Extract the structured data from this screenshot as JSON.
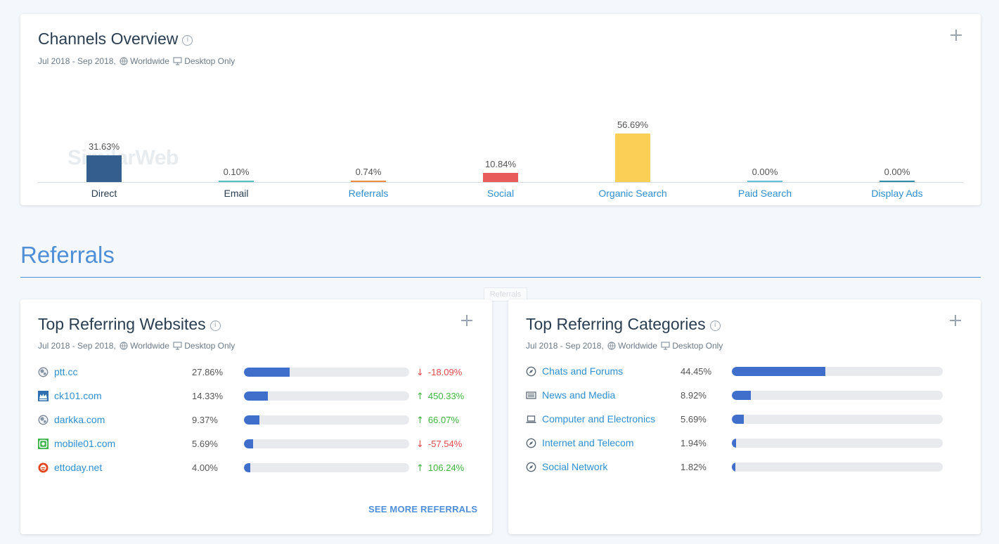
{
  "channels_overview": {
    "title": "Channels Overview",
    "date_range": "Jul 2018 - Sep 2018,",
    "geo": "Worldwide",
    "device": "Desktop Only",
    "watermark": "SimilarWeb"
  },
  "chart_data": {
    "type": "bar",
    "categories": [
      "Direct",
      "Email",
      "Referrals",
      "Social",
      "Organic Search",
      "Paid Search",
      "Display Ads"
    ],
    "values": [
      31.63,
      0.1,
      0.74,
      10.84,
      56.69,
      0.0,
      0.0
    ],
    "value_labels": [
      "31.63%",
      "0.10%",
      "0.74%",
      "10.84%",
      "56.69%",
      "0.00%",
      "0.00%"
    ],
    "colors": [
      "#335e8d",
      "#4fc4bc",
      "#f08a3c",
      "#e85c5c",
      "#fbcf55",
      "#5bc1dd",
      "#2b8ea6"
    ],
    "label_links": [
      false,
      false,
      true,
      true,
      true,
      true,
      true
    ],
    "ylim": [
      0,
      56.69
    ]
  },
  "referrals_section": {
    "title": "Referrals",
    "tooltip": "Referrals"
  },
  "top_referring_websites": {
    "title": "Top Referring Websites",
    "date_range": "Jul 2018 - Sep 2018,",
    "geo": "Worldwide",
    "device": "Desktop Only",
    "see_more": "SEE MORE REFERRALS",
    "rows": [
      {
        "site": "ptt.cc",
        "pct": "27.86%",
        "share": 0.2786,
        "change": "-18.09%",
        "direction": "down",
        "icon": "globe-icon"
      },
      {
        "site": "ck101.com",
        "pct": "14.33%",
        "share": 0.1433,
        "change": "450.33%",
        "direction": "up",
        "icon": "ck101-favicon"
      },
      {
        "site": "darkka.com",
        "pct": "9.37%",
        "share": 0.0937,
        "change": "66.07%",
        "direction": "up",
        "icon": "globe-icon"
      },
      {
        "site": "mobile01.com",
        "pct": "5.69%",
        "share": 0.0569,
        "change": "-57.54%",
        "direction": "down",
        "icon": "mobile01-favicon"
      },
      {
        "site": "ettoday.net",
        "pct": "4.00%",
        "share": 0.04,
        "change": "106.24%",
        "direction": "up",
        "icon": "ettoday-favicon"
      }
    ]
  },
  "top_referring_categories": {
    "title": "Top Referring Categories",
    "date_range": "Jul 2018 - Sep 2018,",
    "geo": "Worldwide",
    "device": "Desktop Only",
    "rows": [
      {
        "category": "Chats and Forums",
        "pct": "44.45%",
        "share": 0.4445,
        "icon": "compass-icon"
      },
      {
        "category": "News and Media",
        "pct": "8.92%",
        "share": 0.0892,
        "icon": "newspaper-icon"
      },
      {
        "category": "Computer and Electronics",
        "pct": "5.69%",
        "share": 0.0569,
        "icon": "laptop-icon"
      },
      {
        "category": "Internet and Telecom",
        "pct": "1.94%",
        "share": 0.0194,
        "icon": "compass-icon"
      },
      {
        "category": "Social Network",
        "pct": "1.82%",
        "share": 0.0182,
        "icon": "compass-icon"
      }
    ]
  }
}
